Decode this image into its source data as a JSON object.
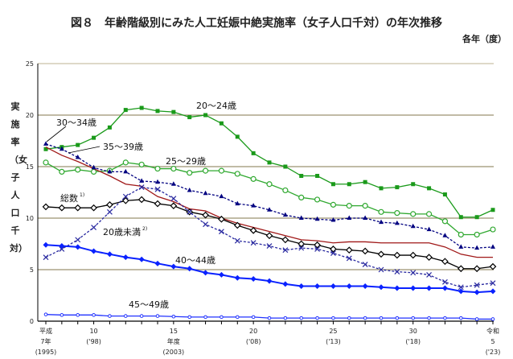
{
  "chart_data": {
    "type": "line",
    "title": "図８　年齢階級別にみた人工妊娠中絶実施率（女子人口千対）の年次推移",
    "unit_note": "各年（度）",
    "ylabel": "実施率（女子人口千対）",
    "ylim": [
      0,
      25
    ],
    "yticks": [
      0,
      5,
      10,
      15,
      20,
      25
    ],
    "grid": true,
    "x": [
      1995,
      1996,
      1997,
      1998,
      1999,
      2000,
      2001,
      2002,
      2003,
      2004,
      2005,
      2006,
      2007,
      2008,
      2009,
      2010,
      2011,
      2012,
      2013,
      2014,
      2015,
      2016,
      2017,
      2018,
      2019,
      2020,
      2021,
      2022,
      2023
    ],
    "xtick_labels": [
      {
        "year": 1995,
        "lines": [
          "平成",
          "7年",
          "(1995)"
        ]
      },
      {
        "year": 1998,
        "lines": [
          "10",
          "('98)"
        ]
      },
      {
        "year": 2003,
        "lines": [
          "15",
          "年度",
          "(2003)"
        ]
      },
      {
        "year": 2008,
        "lines": [
          "20",
          "('08)"
        ]
      },
      {
        "year": 2013,
        "lines": [
          "25",
          "('13)"
        ]
      },
      {
        "year": 2018,
        "lines": [
          "30",
          "('18)"
        ]
      },
      {
        "year": 2023,
        "lines": [
          "令和",
          "5",
          "('23)"
        ]
      }
    ],
    "series": [
      {
        "name": "20～24歳",
        "color": "#1a9a1a",
        "marker": "square",
        "dash": false,
        "values": [
          16.7,
          16.9,
          17.1,
          17.8,
          18.8,
          20.5,
          20.7,
          20.4,
          20.3,
          19.8,
          20.0,
          19.2,
          17.9,
          16.3,
          15.4,
          15.0,
          14.1,
          14.1,
          13.3,
          13.3,
          13.5,
          12.9,
          13.0,
          13.3,
          12.9,
          12.3,
          10.1,
          10.1,
          10.8
        ]
      },
      {
        "name": "25～29歳",
        "color": "#2fa82f",
        "marker": "open-circle",
        "dash": false,
        "values": [
          15.4,
          14.5,
          14.7,
          14.5,
          14.6,
          15.4,
          15.2,
          14.8,
          14.8,
          14.4,
          14.6,
          14.6,
          14.3,
          13.8,
          13.3,
          12.7,
          12.0,
          11.8,
          11.3,
          11.2,
          11.2,
          10.6,
          10.5,
          10.4,
          10.4,
          9.7,
          8.4,
          8.4,
          8.9
        ]
      },
      {
        "name": "30～34歳",
        "color": "#a01818",
        "marker": "none",
        "dash": false,
        "values": [
          16.9,
          16.1,
          15.5,
          14.8,
          14.1,
          13.3,
          13.1,
          12.1,
          11.6,
          10.9,
          10.7,
          10.0,
          9.5,
          9.1,
          8.7,
          8.3,
          7.9,
          7.8,
          7.6,
          7.7,
          7.7,
          7.6,
          7.6,
          7.6,
          7.6,
          7.2,
          6.5,
          6.2,
          6.2
        ]
      },
      {
        "name": "35～39歳",
        "color": "#000080",
        "marker": "triangle",
        "dash": true,
        "values": [
          17.2,
          16.7,
          15.9,
          14.9,
          14.5,
          14.5,
          13.6,
          13.5,
          13.3,
          12.7,
          12.4,
          12.1,
          11.4,
          11.2,
          10.8,
          10.3,
          10.0,
          9.9,
          9.8,
          10.0,
          10.0,
          9.6,
          9.5,
          9.2,
          8.9,
          8.3,
          7.2,
          7.1,
          7.2
        ]
      },
      {
        "name": "総数",
        "note": "1)",
        "color": "#000000",
        "marker": "open-diamond",
        "dash": false,
        "values": [
          11.1,
          11.0,
          11.0,
          11.0,
          11.3,
          11.7,
          11.8,
          11.4,
          11.2,
          10.6,
          10.3,
          9.9,
          9.3,
          8.8,
          8.3,
          7.9,
          7.5,
          7.4,
          7.0,
          6.9,
          6.8,
          6.5,
          6.4,
          6.4,
          6.2,
          5.8,
          5.1,
          5.1,
          5.3
        ]
      },
      {
        "name": "20歳未満",
        "note": "2)",
        "color": "#2a2aa0",
        "marker": "cross",
        "dash": true,
        "values": [
          6.2,
          7.0,
          7.9,
          9.1,
          10.6,
          12.1,
          13.0,
          12.8,
          11.9,
          10.6,
          9.4,
          8.7,
          7.8,
          7.6,
          7.3,
          6.9,
          7.1,
          7.0,
          6.6,
          6.1,
          5.5,
          5.0,
          4.8,
          4.7,
          4.5,
          3.8,
          3.3,
          3.5,
          3.7
        ]
      },
      {
        "name": "40～44歳",
        "color": "#0a22ff",
        "marker": "diamond",
        "dash": false,
        "values": [
          7.4,
          7.3,
          7.2,
          6.8,
          6.5,
          6.2,
          6.0,
          5.6,
          5.3,
          5.1,
          4.7,
          4.5,
          4.2,
          4.1,
          3.9,
          3.6,
          3.4,
          3.4,
          3.4,
          3.4,
          3.4,
          3.3,
          3.2,
          3.2,
          3.2,
          3.2,
          2.9,
          2.8,
          2.9
        ]
      },
      {
        "name": "45～49歳",
        "color": "#2233ff",
        "marker": "small-open-circle",
        "dash": false,
        "values": [
          0.65,
          0.6,
          0.6,
          0.6,
          0.5,
          0.5,
          0.5,
          0.5,
          0.45,
          0.4,
          0.4,
          0.4,
          0.4,
          0.4,
          0.3,
          0.3,
          0.3,
          0.3,
          0.3,
          0.3,
          0.3,
          0.3,
          0.3,
          0.3,
          0.3,
          0.3,
          0.3,
          0.2,
          0.2
        ]
      }
    ]
  }
}
